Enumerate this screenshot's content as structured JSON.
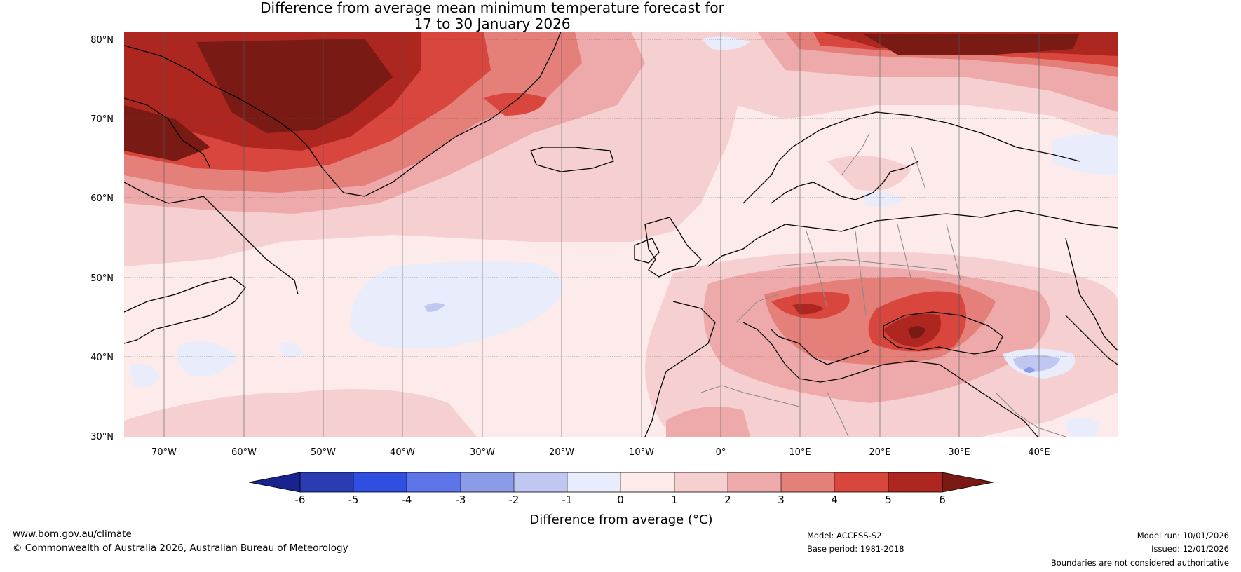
{
  "title": {
    "line1": "Difference from average mean minimum temperature forecast for",
    "line2": "17 to 30 January 2026"
  },
  "map": {
    "lat_labels": [
      "80°N",
      "70°N",
      "60°N",
      "50°N",
      "40°N",
      "30°N"
    ],
    "lon_labels": [
      "70°W",
      "60°W",
      "50°W",
      "40°W",
      "30°W",
      "20°W",
      "10°W",
      "0°",
      "10°E",
      "20°E",
      "30°E",
      "40°E"
    ],
    "extent": {
      "lon_min": -75,
      "lon_max": 50,
      "lat_min": 30,
      "lat_max": 81
    }
  },
  "colorbar": {
    "ticks": [
      "-6",
      "-5",
      "-4",
      "-3",
      "-2",
      "-1",
      "0",
      "1",
      "2",
      "3",
      "4",
      "5",
      "6"
    ],
    "label": "Difference from average (°C)",
    "colors": [
      "#19238f",
      "#2a3cb4",
      "#2f4fe0",
      "#5e75e8",
      "#8a9be8",
      "#c0c8f2",
      "#e8ecfb",
      "#fdeaea",
      "#f6d0d0",
      "#eeaaaa",
      "#e57f7a",
      "#d8463d",
      "#ad2720",
      "#7a1a15"
    ]
  },
  "footer": {
    "url": "www.bom.gov.au/climate",
    "copyright": "© Commonwealth of Australia 2026, Australian Bureau of Meteorology",
    "model": "Model: ACCESS-S2",
    "base_period": "Base period: 1981-2018",
    "model_run": "Model run: 10/01/2026",
    "issued": "Issued: 12/01/2026",
    "disclaimer": "Boundaries are not considered authoritative"
  }
}
